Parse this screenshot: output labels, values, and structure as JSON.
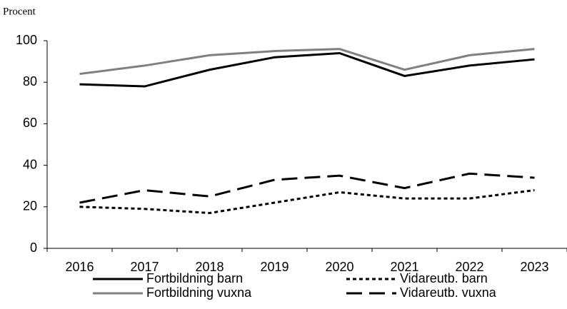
{
  "chart_data": {
    "type": "line",
    "y_axis_label": "Procent",
    "categories": [
      "2016",
      "2017",
      "2018",
      "2019",
      "2020",
      "2021",
      "2022",
      "2023"
    ],
    "series": [
      {
        "name": "Fortbildning barn",
        "color": "#000000",
        "line_style": "solid",
        "values": [
          79,
          78,
          86,
          92,
          94,
          83,
          88,
          91
        ]
      },
      {
        "name": "Vidareutb. barn",
        "color": "#000000",
        "line_style": "dotted",
        "values": [
          20,
          19,
          17,
          22,
          27,
          24,
          24,
          28
        ]
      },
      {
        "name": "Fortbildning vuxna",
        "color": "#808080",
        "line_style": "solid",
        "values": [
          84,
          88,
          93,
          95,
          96,
          86,
          93,
          96
        ]
      },
      {
        "name": "Vidareutb. vuxna",
        "color": "#000000",
        "line_style": "dashed",
        "values": [
          22,
          28,
          25,
          33,
          35,
          29,
          36,
          34
        ]
      }
    ],
    "ylim": [
      0,
      100
    ],
    "yticks": [
      0,
      20,
      40,
      60,
      80,
      100
    ],
    "grid": false,
    "legend": "bottom"
  }
}
